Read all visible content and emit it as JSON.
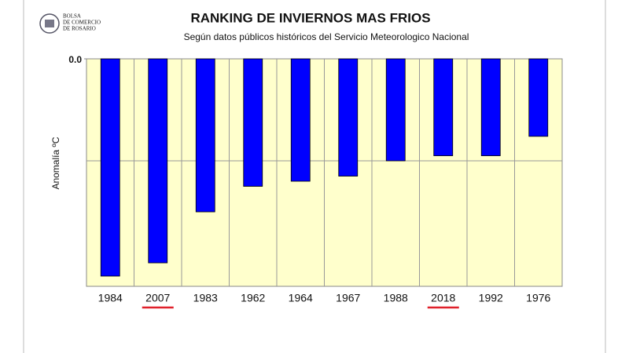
{
  "logo": {
    "lines": [
      "BOLSA",
      "DE COMERCIO",
      "DE ROSARIO"
    ]
  },
  "chart_data": {
    "type": "bar",
    "title": "RANKING DE INVIERNOS MAS FRIOS",
    "subtitle": "Según datos públicos históricos del Servicio Meteorologico Nacional",
    "y_label": "Anomalía ºC",
    "categories": [
      "1984",
      "2007",
      "1983",
      "1962",
      "1964",
      "1967",
      "1988",
      "2018",
      "1992",
      "1976"
    ],
    "values": [
      -2.13,
      -2.0,
      -1.5,
      -1.25,
      -1.2,
      -1.15,
      -1.0,
      -0.95,
      -0.95,
      -0.76
    ],
    "color": "#0000ff",
    "ylim": [
      -2.23,
      0
    ],
    "yticks": [
      {
        "value": 0,
        "label": "0.0"
      }
    ],
    "gridlines": [
      -1
    ],
    "grid": true,
    "underlined": [
      1,
      7
    ],
    "underline_color": "#e0202a",
    "plot_background": "#ffffcc"
  }
}
